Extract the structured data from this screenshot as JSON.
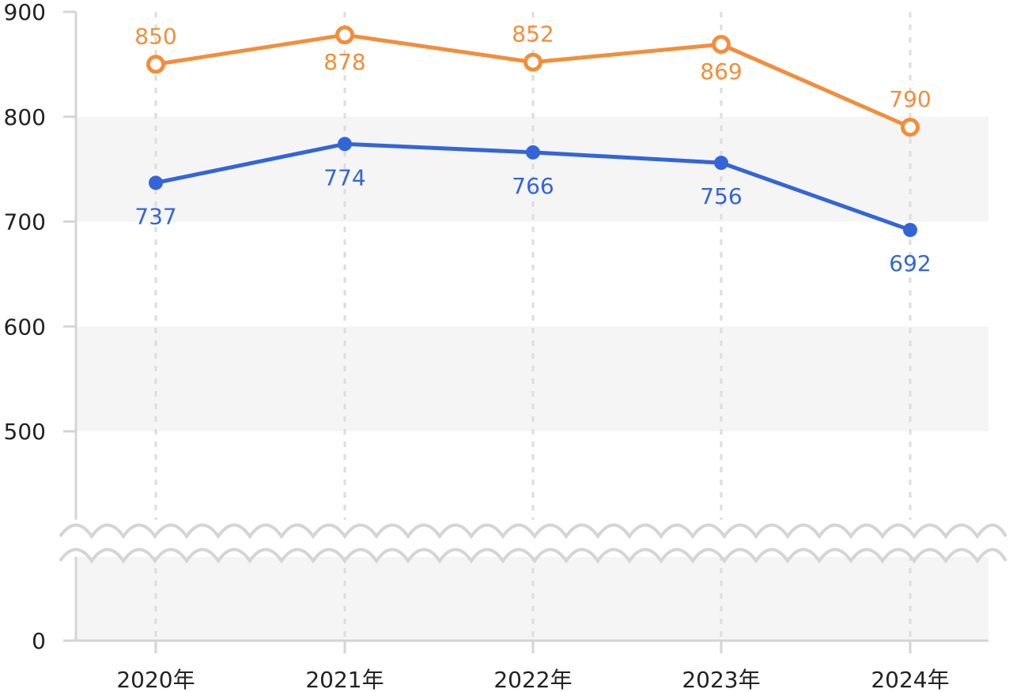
{
  "chart_data": {
    "type": "line",
    "title": "",
    "xlabel": "",
    "ylabel": "",
    "categories": [
      "2020年",
      "2021年",
      "2022年",
      "2023年",
      "2024年"
    ],
    "y_ticks": [
      0,
      500,
      600,
      700,
      800,
      900
    ],
    "ylim": [
      0,
      900
    ],
    "axis_break": true,
    "grid": "alternating horizontal bands",
    "series": [
      {
        "color": "#F28E3B",
        "marker": "open-circle",
        "label_position": "alternating",
        "values": [
          850,
          878,
          852,
          869,
          790
        ]
      },
      {
        "color": "#3465D8",
        "marker": "filled-circle",
        "label_position": "below",
        "values": [
          737,
          774,
          766,
          756,
          692
        ]
      }
    ]
  }
}
